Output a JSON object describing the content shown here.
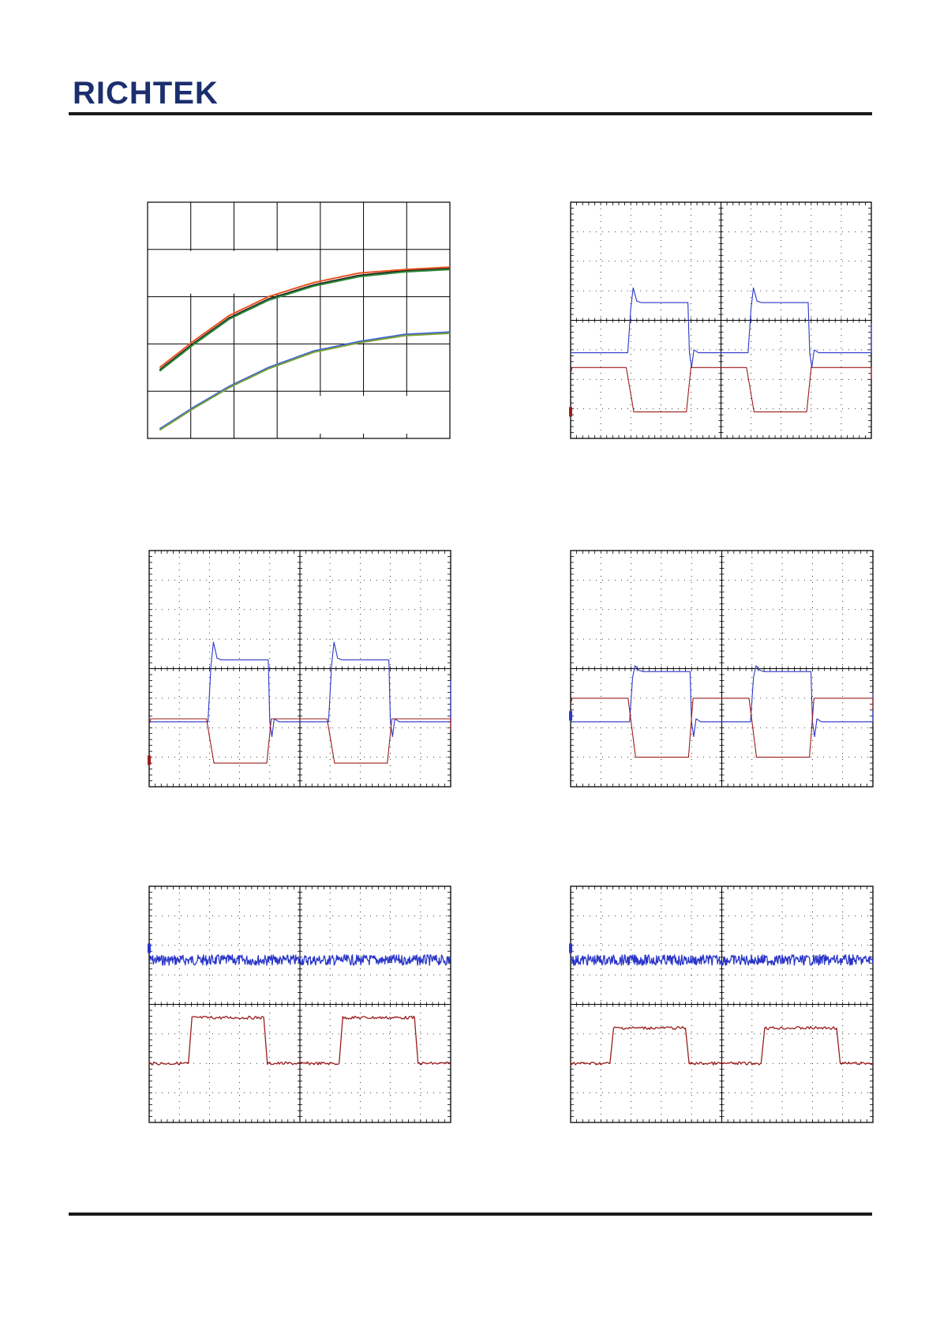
{
  "header": {
    "logo_text": "RICHTEK",
    "brand_color": "#1b2f6e"
  },
  "colors": {
    "ch1": "#2a36c8",
    "ch2": "#9b1c1c",
    "grid": "#000000"
  },
  "charts": [
    {
      "id": "curves",
      "type": "line",
      "grid": {
        "cols": 7,
        "rows": 5
      },
      "series": [
        {
          "color": "#1f1f1f",
          "values": [
            [
              0.04,
              0.29
            ],
            [
              0.15,
              0.4
            ],
            [
              0.27,
              0.51
            ],
            [
              0.4,
              0.59
            ],
            [
              0.55,
              0.65
            ],
            [
              0.7,
              0.69
            ],
            [
              0.85,
              0.71
            ],
            [
              1.0,
              0.72
            ]
          ]
        },
        {
          "color": "#e8501e",
          "values": [
            [
              0.04,
              0.3
            ],
            [
              0.15,
              0.41
            ],
            [
              0.27,
              0.52
            ],
            [
              0.4,
              0.6
            ],
            [
              0.55,
              0.66
            ],
            [
              0.7,
              0.7
            ],
            [
              0.85,
              0.715
            ],
            [
              1.0,
              0.725
            ]
          ]
        },
        {
          "color": "#2e8b3a",
          "values": [
            [
              0.04,
              0.285
            ],
            [
              0.15,
              0.395
            ],
            [
              0.27,
              0.505
            ],
            [
              0.4,
              0.585
            ],
            [
              0.55,
              0.645
            ],
            [
              0.7,
              0.685
            ],
            [
              0.85,
              0.705
            ],
            [
              1.0,
              0.715
            ]
          ]
        },
        {
          "color": "#3a5fd8",
          "values": [
            [
              0.04,
              0.04
            ],
            [
              0.15,
              0.13
            ],
            [
              0.27,
              0.22
            ],
            [
              0.4,
              0.3
            ],
            [
              0.55,
              0.37
            ],
            [
              0.7,
              0.41
            ],
            [
              0.85,
              0.44
            ],
            [
              1.0,
              0.45
            ]
          ]
        },
        {
          "color": "#7aa23a",
          "values": [
            [
              0.04,
              0.035
            ],
            [
              0.15,
              0.125
            ],
            [
              0.27,
              0.215
            ],
            [
              0.4,
              0.295
            ],
            [
              0.55,
              0.365
            ],
            [
              0.7,
              0.405
            ],
            [
              0.85,
              0.435
            ],
            [
              1.0,
              0.445
            ]
          ]
        }
      ]
    },
    {
      "id": "scope-1",
      "type": "scope",
      "grid": {
        "cols": 10,
        "rows": 8
      },
      "traces": [
        {
          "channel": "ch1",
          "style": "load",
          "base": 5.1,
          "high": 3.4,
          "overshoot": 2.9,
          "undershoot": 5.6,
          "noise": 0
        },
        {
          "channel": "ch2",
          "style": "drive",
          "base": 5.6,
          "high": 7.1,
          "noise": 0
        }
      ],
      "transitions": [
        1.9,
        3.9,
        5.9,
        7.9
      ],
      "markers": [
        {
          "channel": "ch2",
          "level": 7.1
        }
      ]
    },
    {
      "id": "scope-2",
      "type": "scope",
      "grid": {
        "cols": 10,
        "rows": 8
      },
      "traces": [
        {
          "channel": "ch1",
          "style": "load",
          "base": 5.8,
          "high": 3.7,
          "overshoot": 3.1,
          "undershoot": 6.3,
          "noise": 0
        },
        {
          "channel": "ch2",
          "style": "drive",
          "base": 5.7,
          "high": 7.2,
          "noise": 0
        }
      ],
      "transitions": [
        1.95,
        3.95,
        5.95,
        7.95
      ],
      "markers": [
        {
          "channel": "ch2",
          "level": 7.1
        }
      ]
    },
    {
      "id": "scope-3",
      "type": "scope",
      "grid": {
        "cols": 10,
        "rows": 8
      },
      "traces": [
        {
          "channel": "ch1",
          "style": "load",
          "base": 5.8,
          "high": 4.1,
          "overshoot": 3.9,
          "undershoot": 6.3,
          "noise": 0
        },
        {
          "channel": "ch2",
          "style": "drive",
          "base": 5.0,
          "high": 7.0,
          "noise": 0
        }
      ],
      "transitions": [
        1.95,
        3.95,
        5.95,
        7.95
      ],
      "markers": [
        {
          "channel": "ch1",
          "level": 5.6
        }
      ]
    },
    {
      "id": "scope-4",
      "type": "scope",
      "grid": {
        "cols": 10,
        "rows": 8
      },
      "traces": [
        {
          "channel": "ch1",
          "style": "noise",
          "base": 2.5,
          "noise": 0.18
        },
        {
          "channel": "ch2",
          "style": "pulse",
          "base": 6.0,
          "high": 4.45,
          "noise": 0.05
        }
      ],
      "transitions": [
        1.3,
        3.8,
        6.3,
        8.8
      ],
      "markers": [
        {
          "channel": "ch1",
          "level": 2.1
        }
      ]
    },
    {
      "id": "scope-5",
      "type": "scope",
      "grid": {
        "cols": 10,
        "rows": 8
      },
      "traces": [
        {
          "channel": "ch1",
          "style": "noise",
          "base": 2.5,
          "noise": 0.18
        },
        {
          "channel": "ch2",
          "style": "pulse",
          "base": 6.0,
          "high": 4.8,
          "noise": 0.05
        }
      ],
      "transitions": [
        1.3,
        3.8,
        6.3,
        8.8
      ],
      "markers": [
        {
          "channel": "ch1",
          "level": 2.1
        }
      ]
    }
  ]
}
